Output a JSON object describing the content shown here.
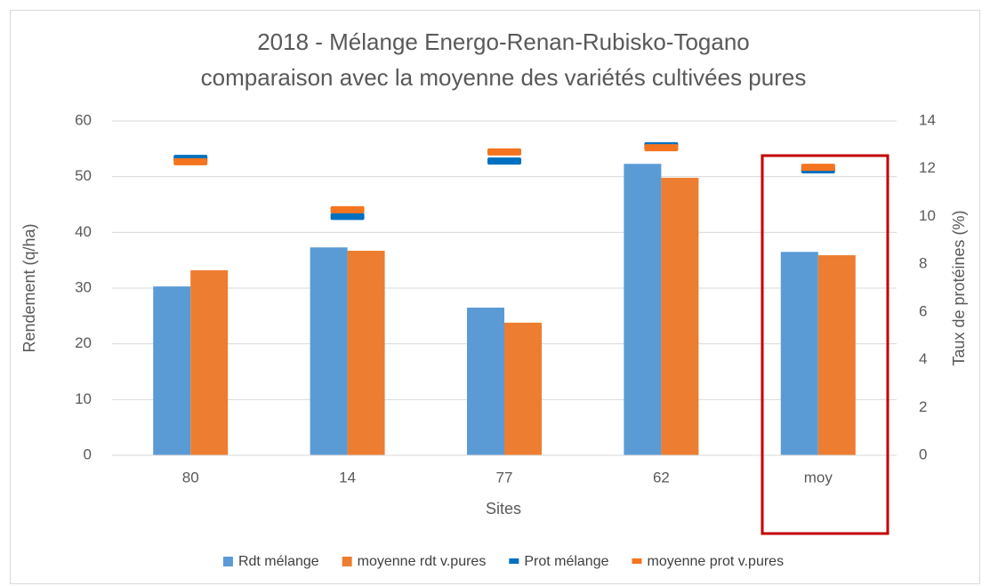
{
  "chart_data": {
    "type": "bar",
    "title": [
      "2018 - Mélange Energo-Renan-Rubisko-Togano",
      "comparaison avec la moyenne des variétés cultivées pures"
    ],
    "x_label": "Sites",
    "y_label": "Rendement  (q/ha)",
    "y2_label": "Taux de protéines (%)",
    "categories": [
      "80",
      "14",
      "77",
      "62",
      "moy"
    ],
    "series": [
      {
        "name": "Rdt mélange",
        "type": "bar",
        "color": "#5b9bd5",
        "values": [
          30.3,
          37.3,
          26.5,
          52.3,
          36.5
        ]
      },
      {
        "name": "moyenne rdt v.pures",
        "type": "bar",
        "color": "#ed7d31",
        "values": [
          33.2,
          36.7,
          23.8,
          49.8,
          35.9
        ]
      },
      {
        "name": "Prot mélange",
        "type": "marker",
        "axis": "y2",
        "color": "#0070c0",
        "values": [
          12.43,
          10.0,
          12.32,
          12.96,
          11.95
        ]
      },
      {
        "name": "moyenne prot v.pures",
        "type": "marker",
        "axis": "y2",
        "color": "#f5741f",
        "values": [
          12.29,
          10.28,
          12.7,
          12.88,
          12.06
        ]
      }
    ],
    "ylim": [
      0,
      60
    ],
    "yticks": [
      0,
      10,
      20,
      30,
      40,
      50,
      60
    ],
    "y2lim": [
      0,
      14
    ],
    "y2ticks": [
      0,
      2,
      4,
      6,
      8,
      10,
      12,
      14
    ],
    "grid": true,
    "legend": "bottom"
  }
}
